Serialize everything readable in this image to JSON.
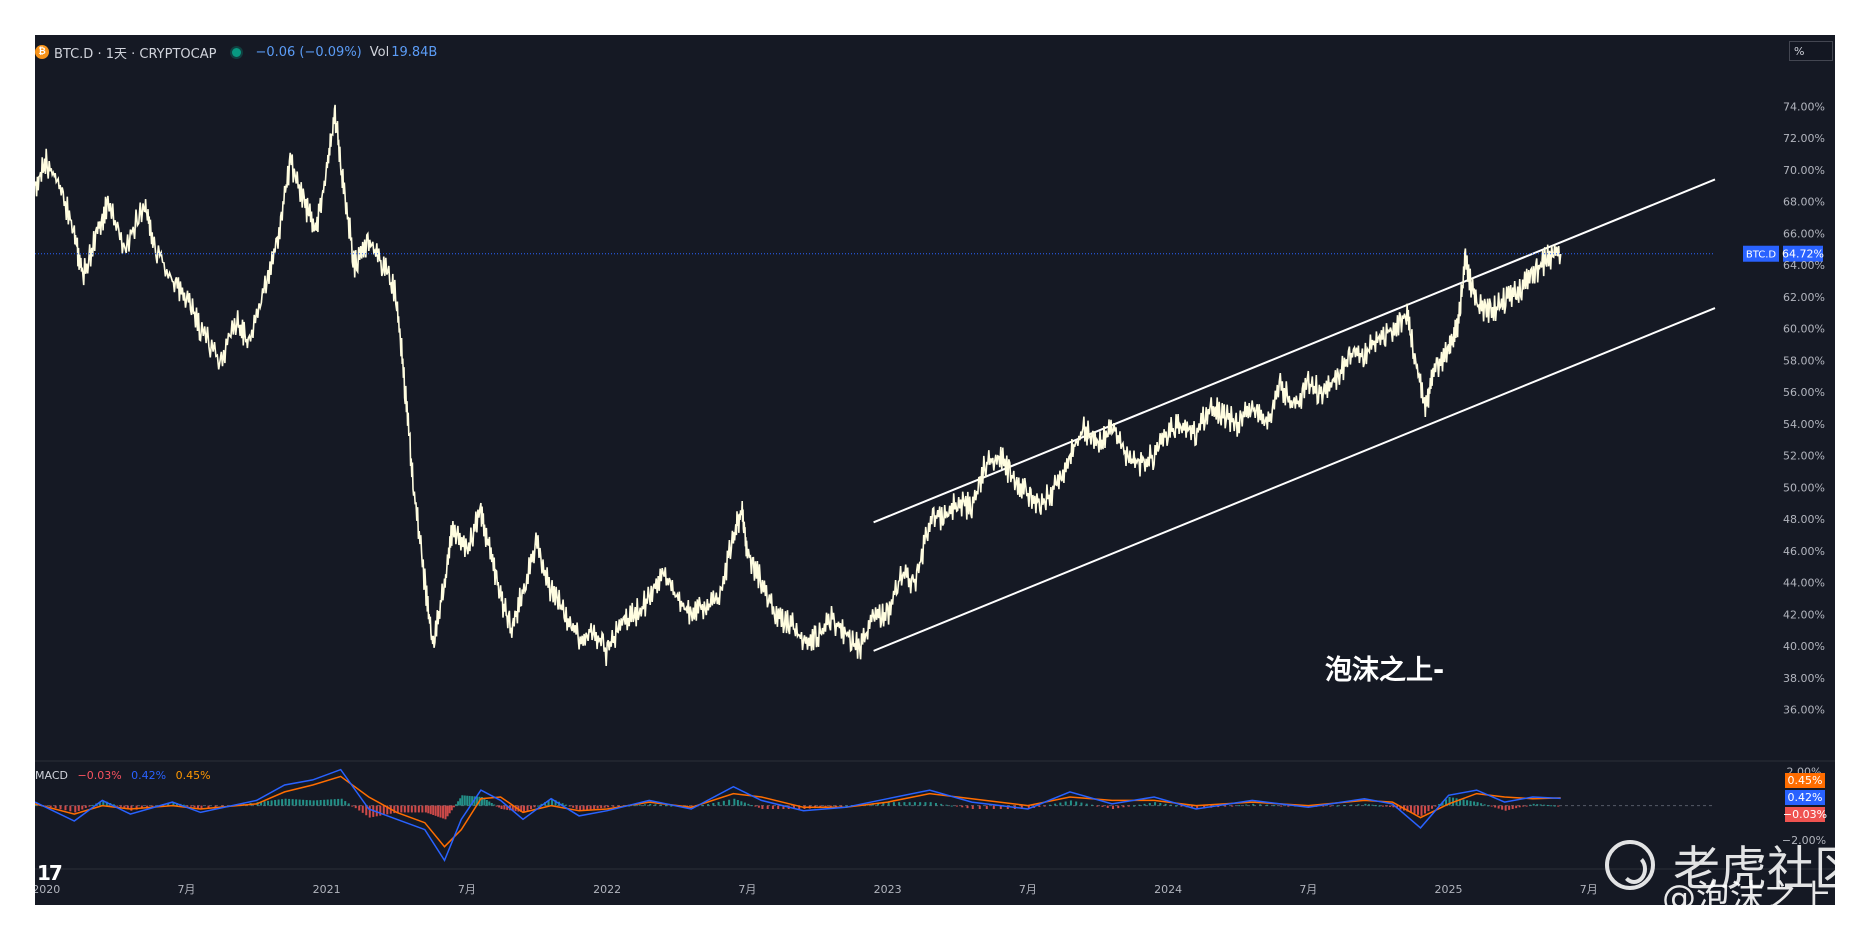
{
  "header": {
    "symbol_icon": "bitcoin-icon",
    "title": "BTC.D · 1天 · CRYPTOCAP",
    "change": "−0.06 (−0.09%)",
    "vol_label": "Vol",
    "vol_value": "19.84B",
    "scale_button": "%"
  },
  "watermark_text": "泡沫之上-",
  "brand": {
    "name": "老虎社区",
    "handle": "@泡沫之上"
  },
  "last_price": {
    "label": "BTC.D",
    "value_text": "64.72%",
    "value": 64.72
  },
  "macd": {
    "label": "MACD",
    "v1": "−0.03%",
    "v2": "0.42%",
    "v3": "0.45%",
    "axis_ticks": [
      "2.00%",
      "−2.00%"
    ],
    "badges": [
      "0.45%",
      "0.42%",
      "−0.03%"
    ]
  },
  "colors": {
    "background": "#151924",
    "price_line": "#fffde0",
    "channel": "#ffffff",
    "macd_line": "#2962ff",
    "signal_line": "#ff6d00",
    "hist_up": "#26a69a",
    "hist_down": "#ef5350",
    "last_price_badge": "#2962ff"
  },
  "chart_data": {
    "type": "line",
    "x_ticks": [
      "2020",
      "7月",
      "2021",
      "7月",
      "2022",
      "7月",
      "2023",
      "7月",
      "2024",
      "7月",
      "2025",
      "7月"
    ],
    "y_ticks": [
      "36.00%",
      "38.00%",
      "40.00%",
      "42.00%",
      "44.00%",
      "46.00%",
      "48.00%",
      "50.00%",
      "52.00%",
      "54.00%",
      "56.00%",
      "58.00%",
      "60.00%",
      "62.00%",
      "64.00%",
      "66.00%",
      "68.00%",
      "70.00%",
      "72.00%",
      "74.00%"
    ],
    "ylim": [
      34.4,
      78.5
    ],
    "x_range": [
      2019.96,
      2025.95
    ],
    "series": [
      {
        "x": [
          2019.96,
          2020.0,
          2020.05,
          2020.1,
          2020.13,
          2020.18,
          2020.22,
          2020.28,
          2020.35,
          2020.38,
          2020.45,
          2020.5,
          2020.55,
          2020.62,
          2020.68,
          2020.72,
          2020.78,
          2020.83,
          2020.87,
          2020.92,
          2020.96,
          2021.0,
          2021.03,
          2021.06,
          2021.1,
          2021.15,
          2021.2,
          2021.25,
          2021.28,
          2021.31,
          2021.35,
          2021.38,
          2021.42,
          2021.45,
          2021.5,
          2021.55,
          2021.58,
          2021.62,
          2021.66,
          2021.7,
          2021.75,
          2021.8,
          2021.85,
          2021.9,
          2021.95,
          2022.0,
          2022.05,
          2022.1,
          2022.15,
          2022.2,
          2022.25,
          2022.3,
          2022.35,
          2022.4,
          2022.45,
          2022.48,
          2022.5,
          2022.55,
          2022.6,
          2022.65,
          2022.7,
          2022.75,
          2022.8,
          2022.85,
          2022.9,
          2022.95,
          2023.0,
          2023.05,
          2023.1,
          2023.15,
          2023.2,
          2023.25,
          2023.3,
          2023.35,
          2023.4,
          2023.45,
          2023.5,
          2023.55,
          2023.6,
          2023.65,
          2023.7,
          2023.75,
          2023.8,
          2023.85,
          2023.9,
          2023.95,
          2024.0,
          2024.05,
          2024.1,
          2024.15,
          2024.2,
          2024.25,
          2024.3,
          2024.35,
          2024.4,
          2024.45,
          2024.5,
          2024.55,
          2024.6,
          2024.65,
          2024.7,
          2024.75,
          2024.8,
          2024.85,
          2024.88,
          2024.92,
          2024.95,
          2025.0,
          2025.03,
          2025.06,
          2025.1,
          2025.15,
          2025.2,
          2025.25,
          2025.3,
          2025.35,
          2025.4
        ],
        "values": [
          69.0,
          70.5,
          69.0,
          66.0,
          63.2,
          66.0,
          67.8,
          65.0,
          68.0,
          65.5,
          63.0,
          62.0,
          60.0,
          58.0,
          60.5,
          59.0,
          62.5,
          66.0,
          70.5,
          68.0,
          66.0,
          70.0,
          73.5,
          69.0,
          64.0,
          65.5,
          64.0,
          62.0,
          56.0,
          50.0,
          44.0,
          40.0,
          44.0,
          47.5,
          46.0,
          48.5,
          46.0,
          43.0,
          41.0,
          43.5,
          46.5,
          43.5,
          42.0,
          40.5,
          41.0,
          39.5,
          41.5,
          42.0,
          43.0,
          44.5,
          43.0,
          42.0,
          42.5,
          43.0,
          47.0,
          48.5,
          46.0,
          44.0,
          42.0,
          41.5,
          40.2,
          40.5,
          41.8,
          40.8,
          39.8,
          41.8,
          42.0,
          44.5,
          44.0,
          47.8,
          48.3,
          49.0,
          48.8,
          51.5,
          52.0,
          50.5,
          49.5,
          49.0,
          50.0,
          52.0,
          53.8,
          52.5,
          54.2,
          52.0,
          51.5,
          52.0,
          53.5,
          54.0,
          53.2,
          55.2,
          54.5,
          54.0,
          55.0,
          53.8,
          56.5,
          55.0,
          56.5,
          56.0,
          57.0,
          58.2,
          58.5,
          59.5,
          60.0,
          61.0,
          58.0,
          55.0,
          57.5,
          58.5,
          60.0,
          64.2,
          61.5,
          61.0,
          61.8,
          62.5,
          63.3,
          64.4,
          64.7
        ]
      }
    ],
    "channel_lines": [
      {
        "name": "upper",
        "x": [
          2022.95,
          2025.95
        ],
        "y": [
          47.8,
          69.4
        ]
      },
      {
        "name": "lower",
        "x": [
          2022.95,
          2025.95
        ],
        "y": [
          39.7,
          61.3
        ]
      }
    ],
    "macd_series": {
      "ylim": [
        -3.7,
        2.6
      ],
      "x": [
        2019.96,
        2020.1,
        2020.2,
        2020.3,
        2020.45,
        2020.55,
        2020.75,
        2020.85,
        2020.95,
        2021.05,
        2021.15,
        2021.25,
        2021.35,
        2021.42,
        2021.48,
        2021.55,
        2021.62,
        2021.7,
        2021.8,
        2021.9,
        2022.0,
        2022.15,
        2022.3,
        2022.45,
        2022.55,
        2022.7,
        2022.85,
        2023.0,
        2023.15,
        2023.3,
        2023.5,
        2023.65,
        2023.8,
        2023.95,
        2024.1,
        2024.3,
        2024.5,
        2024.7,
        2024.8,
        2024.9,
        2025.0,
        2025.1,
        2025.2,
        2025.3,
        2025.4
      ],
      "macd": [
        0.2,
        -0.9,
        0.3,
        -0.5,
        0.2,
        -0.4,
        0.3,
        1.2,
        1.5,
        2.1,
        -0.2,
        -0.8,
        -1.4,
        -3.2,
        -0.8,
        0.9,
        0.3,
        -0.8,
        0.4,
        -0.6,
        -0.3,
        0.3,
        -0.2,
        1.1,
        0.3,
        -0.3,
        -0.1,
        0.4,
        0.9,
        0.2,
        -0.2,
        0.8,
        0.1,
        0.5,
        -0.2,
        0.3,
        -0.1,
        0.4,
        0.1,
        -1.3,
        0.6,
        0.9,
        0.2,
        0.5,
        0.42
      ],
      "signal": [
        0.1,
        -0.5,
        0.0,
        -0.2,
        0.0,
        -0.2,
        0.1,
        0.8,
        1.2,
        1.7,
        0.5,
        -0.4,
        -1.0,
        -2.4,
        -1.4,
        0.4,
        0.5,
        -0.4,
        0.0,
        -0.3,
        -0.2,
        0.2,
        -0.1,
        0.7,
        0.5,
        -0.1,
        -0.1,
        0.2,
        0.7,
        0.4,
        0.0,
        0.5,
        0.3,
        0.3,
        0.0,
        0.2,
        0.0,
        0.3,
        0.2,
        -0.7,
        0.1,
        0.7,
        0.5,
        0.4,
        0.45
      ]
    }
  }
}
